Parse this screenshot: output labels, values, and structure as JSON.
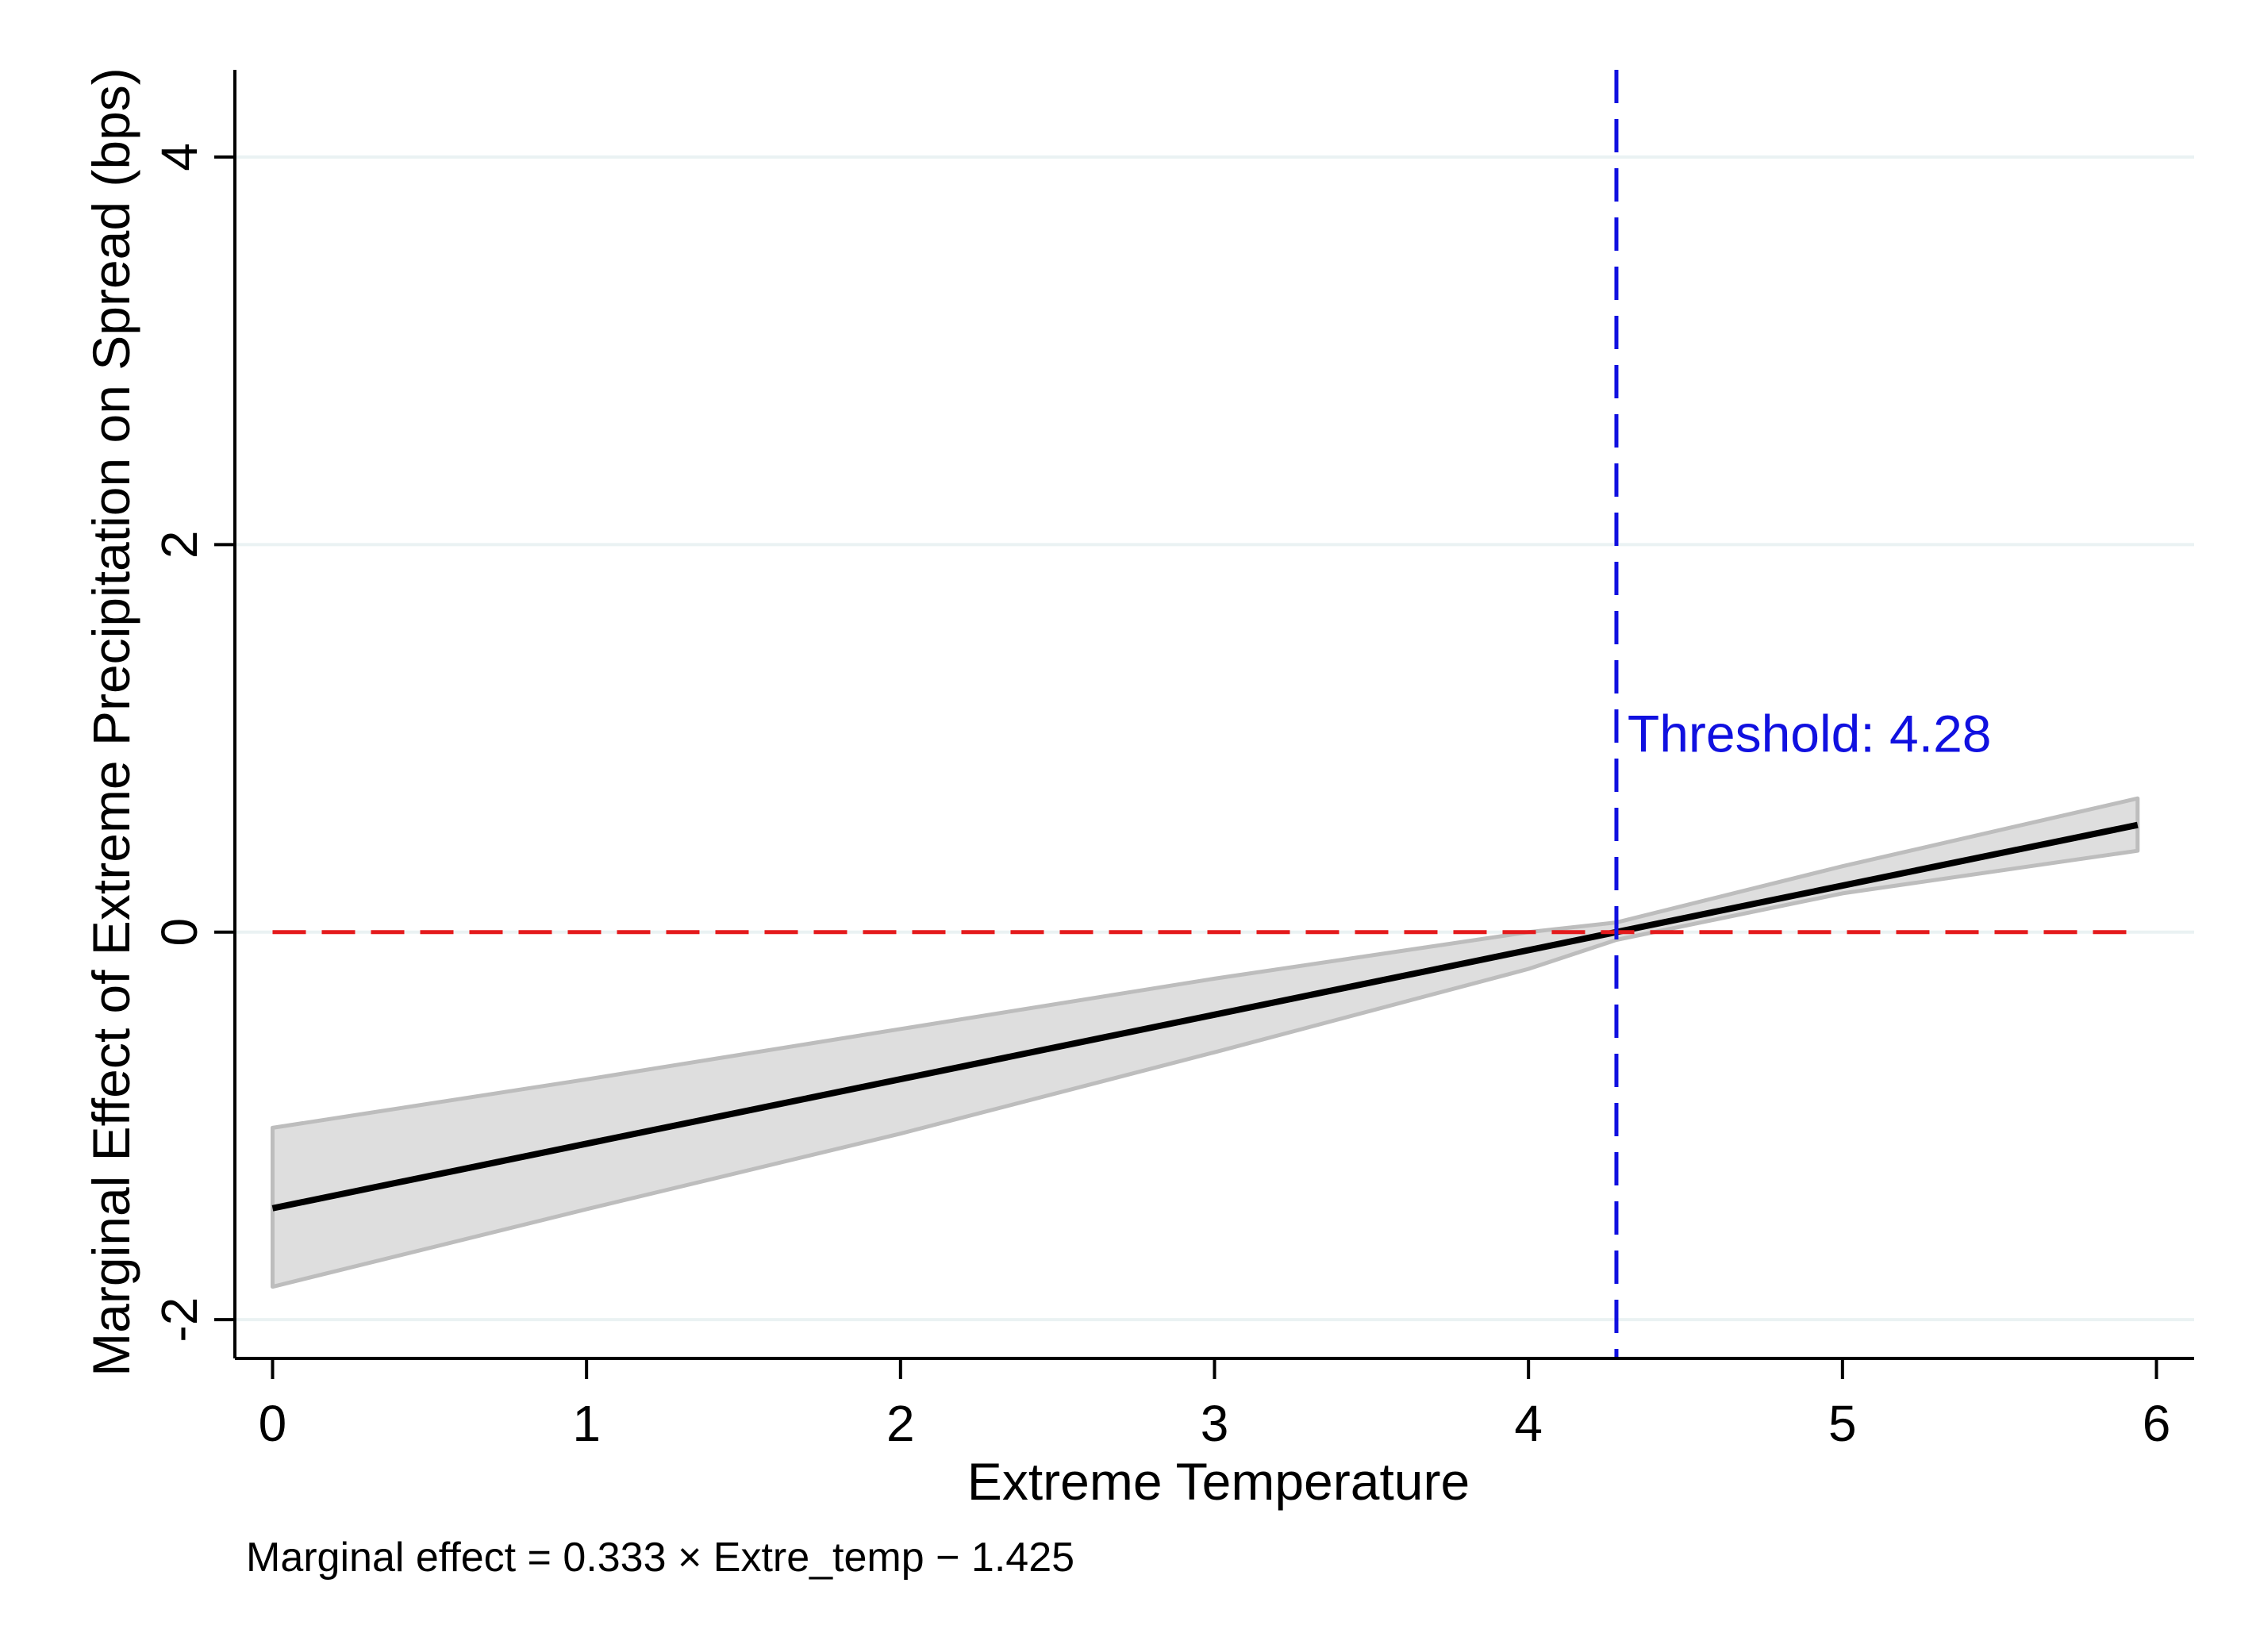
{
  "chart_data": {
    "type": "line",
    "title": "",
    "xlabel": "Extreme Temperature",
    "ylabel": "Marginal Effect of Extreme Precipitation on Spread (bps)",
    "xlim": [
      -0.12,
      6.12
    ],
    "ylim": [
      -2.2,
      4.45
    ],
    "x_ticks": [
      0,
      1,
      2,
      3,
      4,
      5,
      6
    ],
    "y_ticks": [
      -2,
      0,
      2,
      4
    ],
    "x_tick_labels": [
      "0",
      "1",
      "2",
      "3",
      "4",
      "5",
      "6"
    ],
    "y_tick_labels": [
      "-2",
      "0",
      "2",
      "4"
    ],
    "grid": "horizontal",
    "series": [
      {
        "name": "Marginal effect",
        "color": "#000000",
        "x": [
          0,
          5.94
        ],
        "y": [
          -1.425,
          0.553
        ]
      }
    ],
    "confidence_band": {
      "color": "#dedede",
      "edge_color": "#bdbdbd",
      "x": [
        0,
        1,
        2,
        3,
        4,
        4.28,
        5,
        5.94
      ],
      "lower": [
        -1.83,
        -1.43,
        -1.04,
        -0.62,
        -0.19,
        -0.04,
        0.2,
        0.42
      ],
      "upper": [
        -1.01,
        -0.76,
        -0.5,
        -0.24,
        0.0,
        0.05,
        0.34,
        0.69
      ]
    },
    "reference_lines": [
      {
        "orientation": "horizontal",
        "value": 0,
        "color": "#e41a1c",
        "style": "dashed",
        "x_range": [
          0,
          5.94
        ]
      },
      {
        "orientation": "vertical",
        "value": 4.28,
        "color": "#1010e0",
        "style": "dashed"
      }
    ],
    "annotations": [
      {
        "text": "Threshold: 4.28",
        "x": 4.3,
        "y": 0.93,
        "color": "#1010e0"
      }
    ],
    "note": "Marginal effect = 0.333 × Extre_temp − 1.425"
  }
}
